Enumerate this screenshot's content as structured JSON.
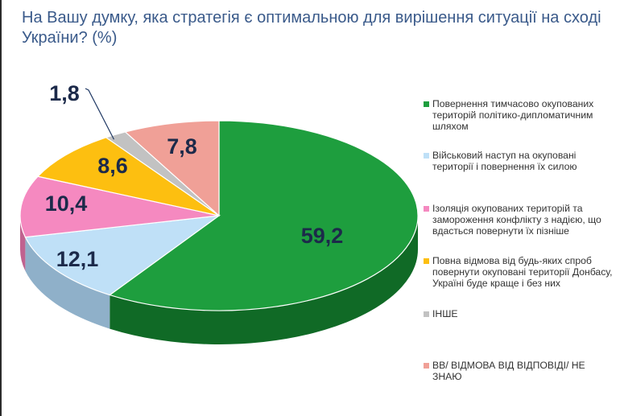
{
  "title": "На Вашу думку, яка стратегія є оптимальною для вирішення ситуації на сході України? (%)",
  "chart_data": {
    "type": "pie",
    "title": "На Вашу думку, яка стратегія є оптимальною для вирішення ситуації на сході України? (%)",
    "unit": "%",
    "legend_position": "right",
    "slices": [
      {
        "label": "Повернення тимчасово окупованих територій політико-дипломатичним шляхом",
        "value": 59.2,
        "display": "59,2",
        "color": "#1e9e3e",
        "side_color": "#106a26"
      },
      {
        "label": "Військовий наступ на окуповані території і повернення їх силою",
        "value": 12.1,
        "display": "12,1",
        "color": "#bfe0f7",
        "side_color": "#8fb0c9"
      },
      {
        "label": "Ізоляція окупованих територій та заморoження конфлікту з надією, що вдасться повернути їх пізніше",
        "value": 10.4,
        "display": "10,4",
        "color": "#f589c0",
        "side_color": "#c0628f"
      },
      {
        "label": "Повна відмова від будь-яких спроб повернути окуповані території Донбасу, Україні буде краще і без них",
        "value": 8.6,
        "display": "8,6",
        "color": "#fdbf10",
        "side_color": "#c79200"
      },
      {
        "label": "ІНШЕ",
        "value": 1.8,
        "display": "1,8",
        "color": "#c2c2c2",
        "side_color": "#8e8e8e"
      },
      {
        "label": "ВВ/ ВІДМОВА ВІД ВІДПОВІДІ/ НЕ ЗНАЮ",
        "value": 7.8,
        "display": "7,8",
        "color": "#f0a097",
        "side_color": "#bf7870"
      }
    ]
  }
}
